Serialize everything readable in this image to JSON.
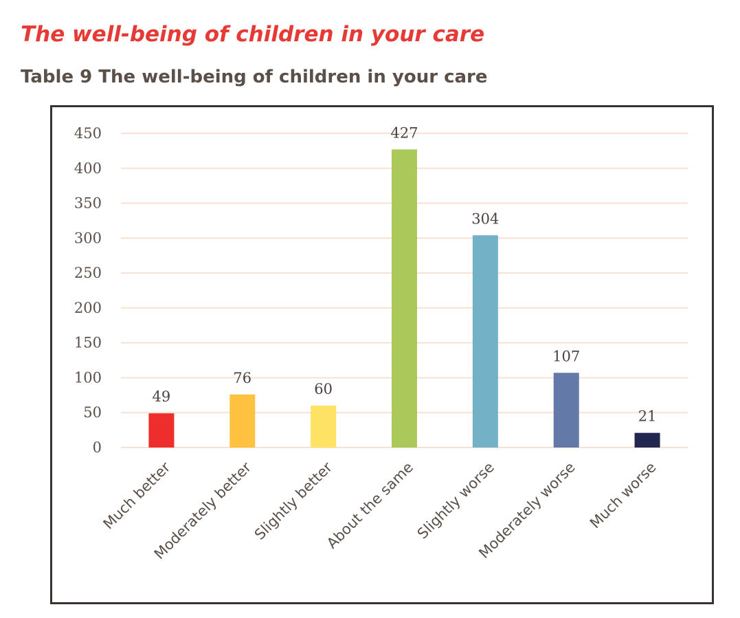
{
  "page": {
    "section_heading": "The well-being of children in your care",
    "table_caption": "Table 9 The well-being of children in your care"
  },
  "chart_data": {
    "type": "bar",
    "title": "Table 9 The well-being of children in your care",
    "xlabel": "",
    "ylabel": "",
    "ylim": [
      0,
      450
    ],
    "yticks": [
      0,
      50,
      100,
      150,
      200,
      250,
      300,
      350,
      400,
      450
    ],
    "grid": true,
    "categories": [
      "Much better",
      "Moderately better",
      "Slightly better",
      "About the same",
      "Slightly worse",
      "Moderately worse",
      "Much worse"
    ],
    "values": [
      49,
      76,
      60,
      427,
      304,
      107,
      21
    ],
    "bar_colors": [
      "#ee2e2c",
      "#fec240",
      "#fee264",
      "#abc95a",
      "#73b2c6",
      "#6379a8",
      "#22274f"
    ],
    "gridline_color": "#f8e1d3",
    "text_color": "#5a5049"
  }
}
